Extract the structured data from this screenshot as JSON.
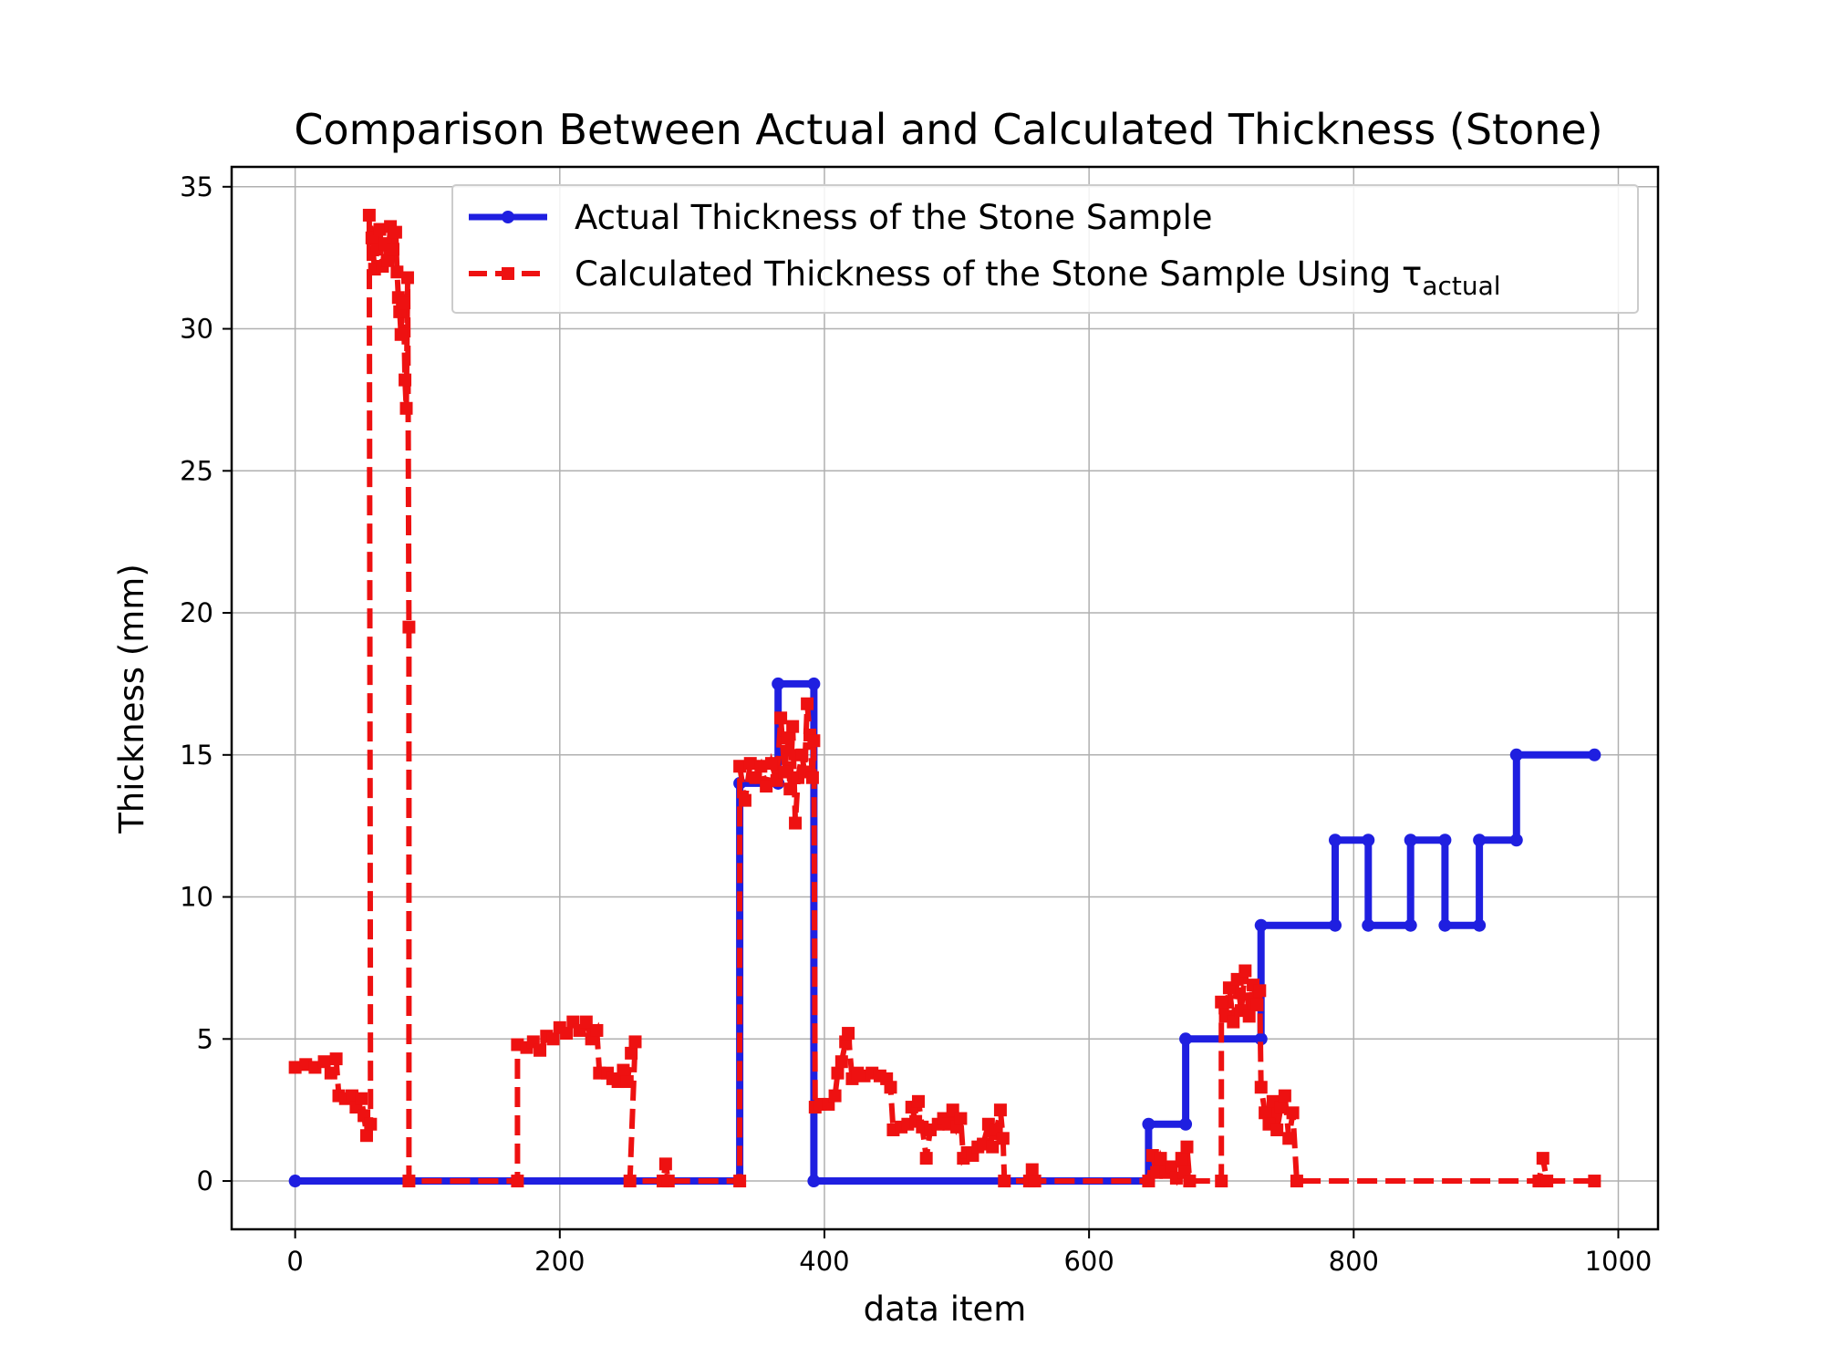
{
  "chart_data": {
    "type": "line",
    "title": "Comparison Between Actual and Calculated Thickness (Stone)",
    "xlabel": "data item",
    "ylabel": "Thickness (mm)",
    "xlim": [
      -48,
      1030
    ],
    "ylim": [
      -1.7,
      35.7
    ],
    "xticks": [
      0,
      200,
      400,
      600,
      800,
      1000
    ],
    "yticks": [
      0,
      5,
      10,
      15,
      20,
      25,
      30,
      35
    ],
    "xtick_labels": [
      "0",
      "200",
      "400",
      "600",
      "800",
      "1000"
    ],
    "ytick_labels": [
      "0",
      "5",
      "10",
      "15",
      "20",
      "25",
      "30",
      "35"
    ],
    "grid": true,
    "legend_position": "top-right",
    "series": [
      {
        "name": "Actual Thickness of the Stone Sample",
        "color": "#1f1fe0",
        "line_style": "solid",
        "marker": "circle",
        "points": [
          [
            0,
            0
          ],
          [
            336,
            0
          ],
          [
            336,
            14
          ],
          [
            365,
            14
          ],
          [
            365,
            17.5
          ],
          [
            392,
            17.5
          ],
          [
            392,
            0
          ],
          [
            645,
            0
          ],
          [
            645,
            2
          ],
          [
            673,
            2
          ],
          [
            673,
            5
          ],
          [
            730,
            5
          ],
          [
            730,
            9
          ],
          [
            786,
            9
          ],
          [
            786,
            12
          ],
          [
            811,
            12
          ],
          [
            811,
            9
          ],
          [
            843,
            9
          ],
          [
            843,
            12
          ],
          [
            869,
            12
          ],
          [
            869,
            9
          ],
          [
            895,
            9
          ],
          [
            895,
            12
          ],
          [
            923,
            12
          ],
          [
            923,
            15
          ],
          [
            982,
            15
          ]
        ]
      },
      {
        "name": "Calculated Thickness of the Stone Sample Using τ",
        "name_subscript": "actual",
        "color": "#ee1111",
        "line_style": "dashed",
        "marker": "square",
        "points": [
          [
            0,
            4.0
          ],
          [
            8,
            4.1
          ],
          [
            15,
            4.0
          ],
          [
            22,
            4.2
          ],
          [
            27,
            3.8
          ],
          [
            31,
            4.3
          ],
          [
            33,
            3.0
          ],
          [
            38,
            2.9
          ],
          [
            43,
            3.0
          ],
          [
            46,
            2.6
          ],
          [
            50,
            2.9
          ],
          [
            52,
            2.3
          ],
          [
            54,
            1.6
          ],
          [
            57,
            2.0
          ],
          [
            56,
            34.0
          ],
          [
            58,
            33.2
          ],
          [
            60,
            32.1
          ],
          [
            62,
            32.8
          ],
          [
            64,
            33.5
          ],
          [
            66,
            32.2
          ],
          [
            68,
            33.0
          ],
          [
            70,
            32.4
          ],
          [
            72,
            33.6
          ],
          [
            74,
            32.8
          ],
          [
            76,
            33.4
          ],
          [
            77,
            32.0
          ],
          [
            78,
            31.1
          ],
          [
            79,
            30.6
          ],
          [
            80,
            29.8
          ],
          [
            81,
            31.0
          ],
          [
            82,
            30.9
          ],
          [
            83,
            28.2
          ],
          [
            84,
            27.2
          ],
          [
            85,
            31.8
          ],
          [
            86,
            19.5
          ],
          [
            86,
            0
          ],
          [
            168,
            0
          ],
          [
            168,
            4.8
          ],
          [
            175,
            4.7
          ],
          [
            180,
            4.9
          ],
          [
            185,
            4.6
          ],
          [
            190,
            5.1
          ],
          [
            195,
            5.0
          ],
          [
            200,
            5.4
          ],
          [
            205,
            5.2
          ],
          [
            210,
            5.6
          ],
          [
            215,
            5.3
          ],
          [
            220,
            5.6
          ],
          [
            224,
            5.0
          ],
          [
            228,
            5.3
          ],
          [
            230,
            3.8
          ],
          [
            236,
            3.8
          ],
          [
            240,
            3.6
          ],
          [
            244,
            3.5
          ],
          [
            248,
            3.9
          ],
          [
            251,
            3.5
          ],
          [
            254,
            4.5
          ],
          [
            257,
            4.9
          ],
          [
            253,
            0
          ],
          [
            278,
            0
          ],
          [
            280,
            0.6
          ],
          [
            282,
            0
          ],
          [
            336,
            0
          ],
          [
            336,
            14.6
          ],
          [
            340,
            13.4
          ],
          [
            344,
            14.7
          ],
          [
            348,
            14.2
          ],
          [
            352,
            14.6
          ],
          [
            356,
            13.9
          ],
          [
            360,
            14.7
          ],
          [
            364,
            14.1
          ],
          [
            367,
            16.3
          ],
          [
            370,
            14.4
          ],
          [
            372,
            15.6
          ],
          [
            374,
            13.8
          ],
          [
            376,
            16.0
          ],
          [
            378,
            12.6
          ],
          [
            380,
            14.2
          ],
          [
            383,
            15.0
          ],
          [
            385,
            14.4
          ],
          [
            387,
            16.8
          ],
          [
            389,
            15.7
          ],
          [
            391,
            14.2
          ],
          [
            392,
            15.5
          ],
          [
            393,
            2.6
          ],
          [
            397,
            2.7
          ],
          [
            403,
            2.7
          ],
          [
            408,
            3.0
          ],
          [
            410,
            3.8
          ],
          [
            413,
            4.2
          ],
          [
            416,
            4.9
          ],
          [
            418,
            5.2
          ],
          [
            421,
            3.6
          ],
          [
            425,
            3.8
          ],
          [
            430,
            3.7
          ],
          [
            436,
            3.8
          ],
          [
            442,
            3.7
          ],
          [
            447,
            3.6
          ],
          [
            450,
            3.3
          ],
          [
            452,
            1.8
          ],
          [
            458,
            1.9
          ],
          [
            463,
            2.0
          ],
          [
            466,
            2.6
          ],
          [
            469,
            2.1
          ],
          [
            471,
            2.8
          ],
          [
            474,
            1.9
          ],
          [
            477,
            0.8
          ],
          [
            480,
            1.8
          ],
          [
            486,
            2.0
          ],
          [
            490,
            2.2
          ],
          [
            494,
            2.0
          ],
          [
            497,
            2.5
          ],
          [
            500,
            1.9
          ],
          [
            503,
            2.2
          ],
          [
            505,
            0.8
          ],
          [
            508,
            1.0
          ],
          [
            512,
            0.9
          ],
          [
            516,
            1.2
          ],
          [
            520,
            1.3
          ],
          [
            524,
            2.0
          ],
          [
            527,
            1.2
          ],
          [
            530,
            1.8
          ],
          [
            533,
            2.5
          ],
          [
            535,
            1.5
          ],
          [
            536,
            0
          ],
          [
            555,
            0
          ],
          [
            557,
            0.4
          ],
          [
            559,
            0
          ],
          [
            645,
            0
          ],
          [
            648,
            0.9
          ],
          [
            651,
            0.3
          ],
          [
            654,
            0.8
          ],
          [
            658,
            0.3
          ],
          [
            662,
            0.5
          ],
          [
            666,
            0.1
          ],
          [
            670,
            0.8
          ],
          [
            672,
            0.3
          ],
          [
            674,
            1.2
          ],
          [
            676,
            0
          ],
          [
            700,
            0
          ],
          [
            700,
            6.3
          ],
          [
            703,
            5.8
          ],
          [
            706,
            6.8
          ],
          [
            709,
            5.6
          ],
          [
            712,
            7.1
          ],
          [
            715,
            6.0
          ],
          [
            718,
            7.4
          ],
          [
            721,
            5.8
          ],
          [
            724,
            6.9
          ],
          [
            727,
            6.2
          ],
          [
            729,
            6.7
          ],
          [
            730,
            3.3
          ],
          [
            733,
            2.4
          ],
          [
            736,
            2.0
          ],
          [
            739,
            2.8
          ],
          [
            742,
            1.8
          ],
          [
            745,
            2.6
          ],
          [
            748,
            3.0
          ],
          [
            751,
            1.5
          ],
          [
            754,
            2.4
          ],
          [
            757,
            0
          ],
          [
            940,
            0
          ],
          [
            943,
            0.8
          ],
          [
            946,
            0
          ],
          [
            982,
            0
          ]
        ]
      }
    ]
  }
}
